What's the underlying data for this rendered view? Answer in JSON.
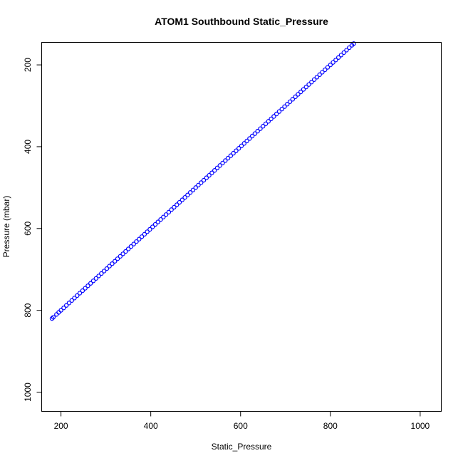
{
  "chart_data": {
    "type": "scatter",
    "title": "ATOM1 Southbound Static_Pressure",
    "xlabel": "Static_Pressure",
    "ylabel": "Pressure (mbar)",
    "xlim": [
      157,
      1047
    ],
    "ylim": [
      1047,
      145
    ],
    "y_reversed": true,
    "x_ticks": [
      200,
      400,
      600,
      800,
      1000
    ],
    "y_ticks": [
      200,
      400,
      600,
      800,
      1000
    ],
    "x_tick_labels": [
      "200",
      "400",
      "600",
      "800",
      "1000"
    ],
    "y_tick_labels": [
      "200",
      "400",
      "600",
      "800",
      "1000"
    ],
    "grid": false,
    "marker": "open-circle",
    "point_color": "#0000ff",
    "series": [
      {
        "x": [
          180,
          183,
          190,
          195,
          200,
          206,
          212,
          218,
          224,
          230,
          236,
          242,
          248,
          254,
          260,
          266,
          272,
          278,
          284,
          290,
          296,
          302,
          308,
          314,
          320,
          326,
          332,
          338,
          344,
          350,
          356,
          362,
          368,
          374,
          380,
          386,
          392,
          398,
          404,
          410,
          416,
          422,
          428,
          434,
          440,
          446,
          452,
          458,
          464,
          470,
          476,
          482,
          488,
          494,
          500,
          506,
          512,
          518,
          524,
          530,
          536,
          542,
          548,
          554,
          560,
          566,
          572,
          578,
          584,
          590,
          596,
          602,
          608,
          614,
          620,
          626,
          632,
          638,
          644,
          650,
          656,
          662,
          668,
          674,
          680,
          686,
          692,
          698,
          704,
          710,
          716,
          722,
          728,
          734,
          740,
          746,
          752,
          758,
          764,
          770,
          776,
          782,
          788,
          794,
          800,
          806,
          812,
          818,
          824,
          830,
          836,
          842,
          848,
          852
        ],
        "y": [
          820,
          817,
          810,
          805,
          800,
          794,
          788,
          782,
          776,
          770,
          764,
          758,
          752,
          746,
          740,
          734,
          728,
          722,
          716,
          710,
          704,
          698,
          692,
          686,
          680,
          674,
          668,
          662,
          656,
          650,
          644,
          638,
          632,
          626,
          620,
          614,
          608,
          602,
          596,
          590,
          584,
          578,
          572,
          566,
          560,
          554,
          548,
          542,
          536,
          530,
          524,
          518,
          512,
          506,
          500,
          494,
          488,
          482,
          476,
          470,
          464,
          458,
          452,
          446,
          440,
          434,
          428,
          422,
          416,
          410,
          404,
          398,
          392,
          386,
          380,
          374,
          368,
          362,
          356,
          350,
          344,
          338,
          332,
          326,
          320,
          314,
          308,
          302,
          296,
          290,
          284,
          278,
          272,
          266,
          260,
          254,
          248,
          242,
          236,
          230,
          224,
          218,
          212,
          206,
          200,
          194,
          188,
          182,
          176,
          170,
          164,
          158,
          152,
          148
        ]
      }
    ]
  }
}
